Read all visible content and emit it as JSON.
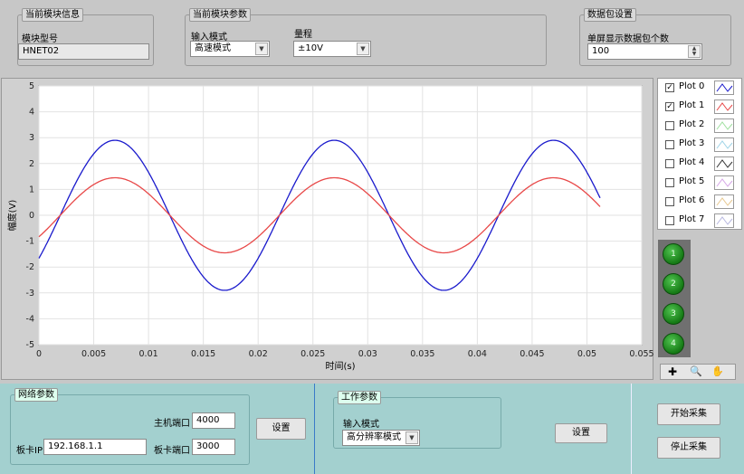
{
  "module_info": {
    "title": "当前模块信息",
    "model_label": "模块型号",
    "model_value": "HNET02"
  },
  "module_params": {
    "title": "当前模块参数",
    "input_mode_label": "输入模式",
    "input_mode_value": "高速模式",
    "range_label": "量程",
    "range_value": "±10V"
  },
  "packet_settings": {
    "title": "数据包设置",
    "count_label": "单屏显示数据包个数",
    "count_value": "100"
  },
  "graph": {
    "ylabel": "幅度(V)",
    "xlabel": "时间(s)",
    "yticks": [
      "5",
      "4",
      "3",
      "2",
      "1",
      "0",
      "-1",
      "-2",
      "-3",
      "-4",
      "-5"
    ],
    "xticks": [
      "0",
      "0.005",
      "0.01",
      "0.015",
      "0.02",
      "0.025",
      "0.03",
      "0.035",
      "0.04",
      "0.045",
      "0.05",
      "0.055"
    ]
  },
  "legend": {
    "plots": [
      {
        "name": "Plot 0",
        "checked": true,
        "color": "#1a1acc"
      },
      {
        "name": "Plot 1",
        "checked": true,
        "color": "#e84848"
      },
      {
        "name": "Plot 2",
        "checked": false,
        "color": "#9fe09f"
      },
      {
        "name": "Plot 3",
        "checked": false,
        "color": "#9fd4e8"
      },
      {
        "name": "Plot 4",
        "checked": false,
        "color": "#333333"
      },
      {
        "name": "Plot 5",
        "checked": false,
        "color": "#d6a6e8"
      },
      {
        "name": "Plot 6",
        "checked": false,
        "color": "#e8c890"
      },
      {
        "name": "Plot 7",
        "checked": false,
        "color": "#b8b8e0"
      }
    ]
  },
  "cursors": [
    "1",
    "2",
    "3",
    "4"
  ],
  "chart_data": {
    "type": "line",
    "xlabel": "时间(s)",
    "ylabel": "幅度(V)",
    "xlim": [
      0,
      0.055
    ],
    "ylim": [
      -5,
      5
    ],
    "grid": true,
    "series": [
      {
        "name": "Plot 0",
        "color": "#1a1acc",
        "amplitude": 2.9,
        "frequency_hz": 50,
        "phase_deg": -35,
        "x_end": 0.0512
      },
      {
        "name": "Plot 1",
        "color": "#e84848",
        "amplitude": 1.45,
        "frequency_hz": 50,
        "phase_deg": -35,
        "x_end": 0.0512
      }
    ]
  },
  "network": {
    "title": "网络参数",
    "host_port_label": "主机端口",
    "host_port_value": "4000",
    "board_ip_label": "板卡IP",
    "board_ip_value": "192.168.1.1",
    "board_port_label": "板卡端口",
    "board_port_value": "3000",
    "set_label": "设置"
  },
  "work": {
    "title": "工作参数",
    "input_mode_label": "输入模式",
    "input_mode_value": "高分辨率模式",
    "set_label": "设置"
  },
  "actions": {
    "start_label": "开始采集",
    "stop_label": "停止采集"
  }
}
